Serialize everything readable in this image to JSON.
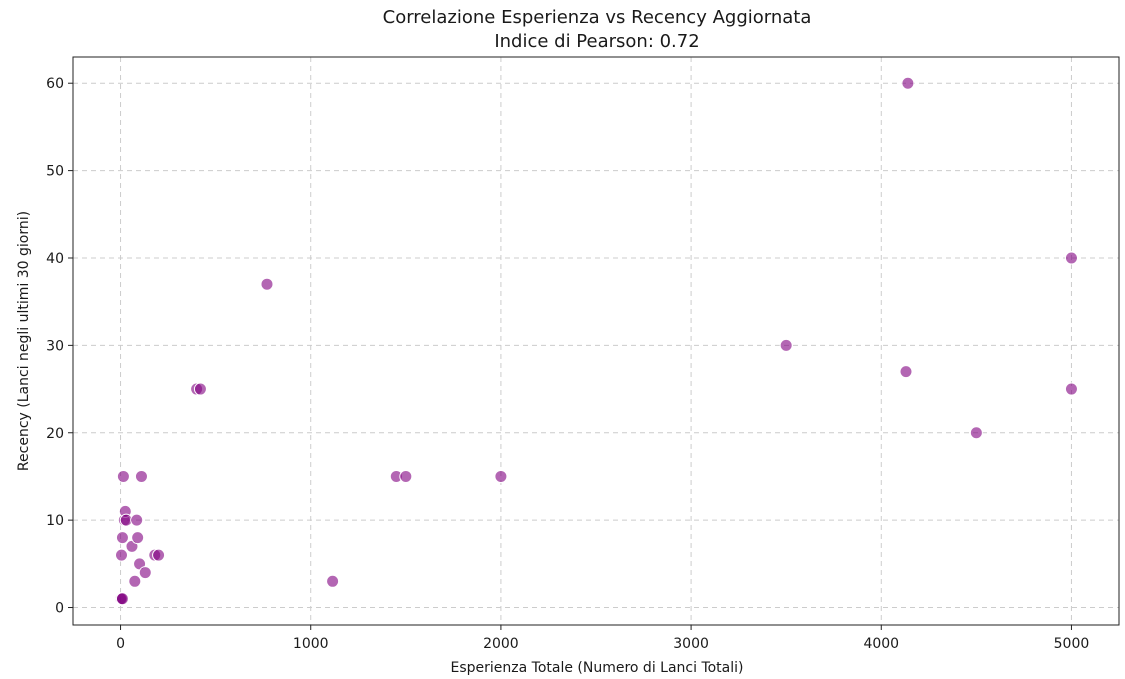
{
  "chart_data": {
    "type": "scatter",
    "title": "Correlazione Esperienza vs Recency Aggiornata",
    "subtitle": "Indice di Pearson: 0.72",
    "xlabel": "Esperienza Totale (Numero di Lanci Totali)",
    "ylabel": "Recency (Lanci negli ultimi 30 giorni)",
    "xlim": [
      -250,
      5250
    ],
    "ylim": [
      -2,
      63
    ],
    "xticks": [
      0,
      1000,
      2000,
      3000,
      4000,
      5000
    ],
    "yticks": [
      0,
      10,
      20,
      30,
      40,
      50,
      60
    ],
    "grid": true,
    "marker_color": "#800080",
    "marker_opacity": 0.6,
    "points": [
      {
        "x": 0,
        "y": 1
      },
      {
        "x": 5,
        "y": 1
      },
      {
        "x": 10,
        "y": 1
      },
      {
        "x": 5,
        "y": 6
      },
      {
        "x": 10,
        "y": 8
      },
      {
        "x": 15,
        "y": 15
      },
      {
        "x": 20,
        "y": 10
      },
      {
        "x": 25,
        "y": 11
      },
      {
        "x": 30,
        "y": 10
      },
      {
        "x": 60,
        "y": 7
      },
      {
        "x": 75,
        "y": 3
      },
      {
        "x": 85,
        "y": 10
      },
      {
        "x": 90,
        "y": 8
      },
      {
        "x": 100,
        "y": 5
      },
      {
        "x": 110,
        "y": 15
      },
      {
        "x": 130,
        "y": 4
      },
      {
        "x": 180,
        "y": 6
      },
      {
        "x": 200,
        "y": 6
      },
      {
        "x": 400,
        "y": 25
      },
      {
        "x": 420,
        "y": 25
      },
      {
        "x": 770,
        "y": 37
      },
      {
        "x": 1115,
        "y": 3
      },
      {
        "x": 1450,
        "y": 15
      },
      {
        "x": 1500,
        "y": 15
      },
      {
        "x": 2000,
        "y": 15
      },
      {
        "x": 3500,
        "y": 30
      },
      {
        "x": 4130,
        "y": 27
      },
      {
        "x": 4140,
        "y": 60
      },
      {
        "x": 4500,
        "y": 20
      },
      {
        "x": 5000,
        "y": 40
      },
      {
        "x": 5000,
        "y": 25
      }
    ]
  }
}
